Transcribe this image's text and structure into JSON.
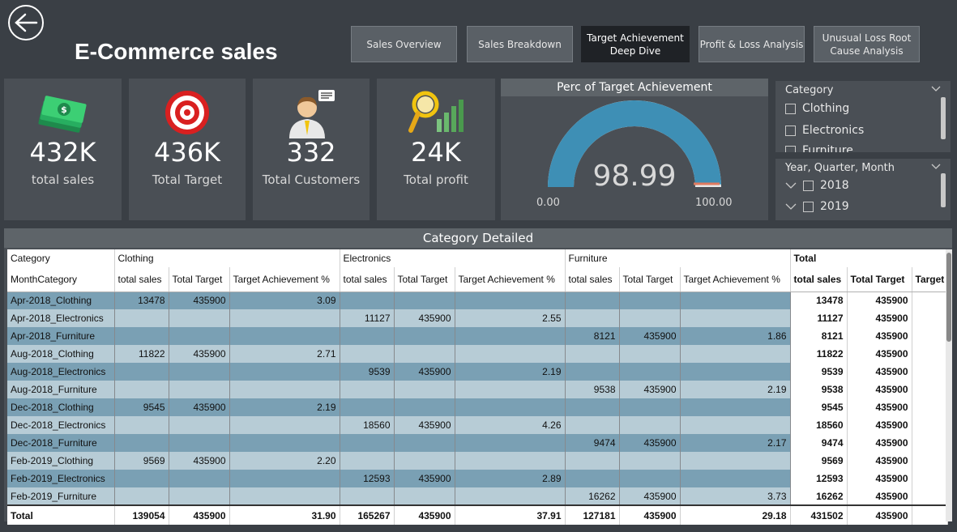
{
  "header": {
    "title": "E-Commerce sales",
    "nav": [
      {
        "label": "Sales Overview"
      },
      {
        "label": "Sales Breakdown"
      },
      {
        "label": "Target Achievement\nDeep Dive"
      },
      {
        "label": "Profit & Loss Analysis"
      },
      {
        "label": "Unusual Loss Root\nCause Analysis"
      }
    ]
  },
  "kpis": [
    {
      "value": "432K",
      "label": "total sales",
      "icon": "money-icon"
    },
    {
      "value": "436K",
      "label": "Total Target",
      "icon": "target-icon"
    },
    {
      "value": "332",
      "label": "Total Customers",
      "icon": "customer-icon"
    },
    {
      "value": "24K",
      "label": "Total profit",
      "icon": "profit-chart-icon"
    }
  ],
  "gauge": {
    "title": "Perc of Target Achievement",
    "value": "98.99",
    "value_num": 98.99,
    "min": "0.00",
    "max": "100.00",
    "colors": {
      "fill": "#3e8fb5",
      "track": "#e8e8e8",
      "target": "#e07a5f"
    }
  },
  "slicer_category": {
    "title": "Category",
    "items": [
      "Clothing",
      "Electronics",
      "Furniture"
    ]
  },
  "slicer_date": {
    "title": "Year, Quarter, Month",
    "items": [
      "2018",
      "2019"
    ]
  },
  "table": {
    "title": "Category Detailed",
    "header1": {
      "row_label": "Category",
      "groups": [
        "Clothing",
        "Electronics",
        "Furniture"
      ],
      "total": "Total"
    },
    "header2": {
      "row_label": "MonthCategory",
      "cols": [
        "total sales",
        "Total Target",
        "Target Achievement %"
      ],
      "total_cols": [
        "total sales",
        "Total Target",
        "Target"
      ]
    },
    "rows": [
      {
        "label": "Apr-2018_Clothing",
        "g": [
          [
            "13478",
            "435900",
            "3.09"
          ],
          [
            "",
            "",
            ""
          ],
          [
            "",
            "",
            ""
          ]
        ],
        "t": [
          "13478",
          "435900"
        ]
      },
      {
        "label": "Apr-2018_Electronics",
        "g": [
          [
            "",
            "",
            ""
          ],
          [
            "11127",
            "435900",
            "2.55"
          ],
          [
            "",
            "",
            ""
          ]
        ],
        "t": [
          "11127",
          "435900"
        ]
      },
      {
        "label": "Apr-2018_Furniture",
        "g": [
          [
            "",
            "",
            ""
          ],
          [
            "",
            "",
            ""
          ],
          [
            "8121",
            "435900",
            "1.86"
          ]
        ],
        "t": [
          "8121",
          "435900"
        ]
      },
      {
        "label": "Aug-2018_Clothing",
        "g": [
          [
            "11822",
            "435900",
            "2.71"
          ],
          [
            "",
            "",
            ""
          ],
          [
            "",
            "",
            ""
          ]
        ],
        "t": [
          "11822",
          "435900"
        ]
      },
      {
        "label": "Aug-2018_Electronics",
        "g": [
          [
            "",
            "",
            ""
          ],
          [
            "9539",
            "435900",
            "2.19"
          ],
          [
            "",
            "",
            ""
          ]
        ],
        "t": [
          "9539",
          "435900"
        ]
      },
      {
        "label": "Aug-2018_Furniture",
        "g": [
          [
            "",
            "",
            ""
          ],
          [
            "",
            "",
            ""
          ],
          [
            "9538",
            "435900",
            "2.19"
          ]
        ],
        "t": [
          "9538",
          "435900"
        ]
      },
      {
        "label": "Dec-2018_Clothing",
        "g": [
          [
            "9545",
            "435900",
            "2.19"
          ],
          [
            "",
            "",
            ""
          ],
          [
            "",
            "",
            ""
          ]
        ],
        "t": [
          "9545",
          "435900"
        ]
      },
      {
        "label": "Dec-2018_Electronics",
        "g": [
          [
            "",
            "",
            ""
          ],
          [
            "18560",
            "435900",
            "4.26"
          ],
          [
            "",
            "",
            ""
          ]
        ],
        "t": [
          "18560",
          "435900"
        ]
      },
      {
        "label": "Dec-2018_Furniture",
        "g": [
          [
            "",
            "",
            ""
          ],
          [
            "",
            "",
            ""
          ],
          [
            "9474",
            "435900",
            "2.17"
          ]
        ],
        "t": [
          "9474",
          "435900"
        ]
      },
      {
        "label": "Feb-2019_Clothing",
        "g": [
          [
            "9569",
            "435900",
            "2.20"
          ],
          [
            "",
            "",
            ""
          ],
          [
            "",
            "",
            ""
          ]
        ],
        "t": [
          "9569",
          "435900"
        ]
      },
      {
        "label": "Feb-2019_Electronics",
        "g": [
          [
            "",
            "",
            ""
          ],
          [
            "12593",
            "435900",
            "2.89"
          ],
          [
            "",
            "",
            ""
          ]
        ],
        "t": [
          "12593",
          "435900"
        ]
      },
      {
        "label": "Feb-2019_Furniture",
        "g": [
          [
            "",
            "",
            ""
          ],
          [
            "",
            "",
            ""
          ],
          [
            "16262",
            "435900",
            "3.73"
          ]
        ],
        "t": [
          "16262",
          "435900"
        ]
      }
    ],
    "total": {
      "label": "Total",
      "g": [
        [
          "139054",
          "435900",
          "31.90"
        ],
        [
          "165267",
          "435900",
          "37.91"
        ],
        [
          "127181",
          "435900",
          "29.18"
        ]
      ],
      "t": [
        "431502",
        "435900"
      ]
    }
  }
}
